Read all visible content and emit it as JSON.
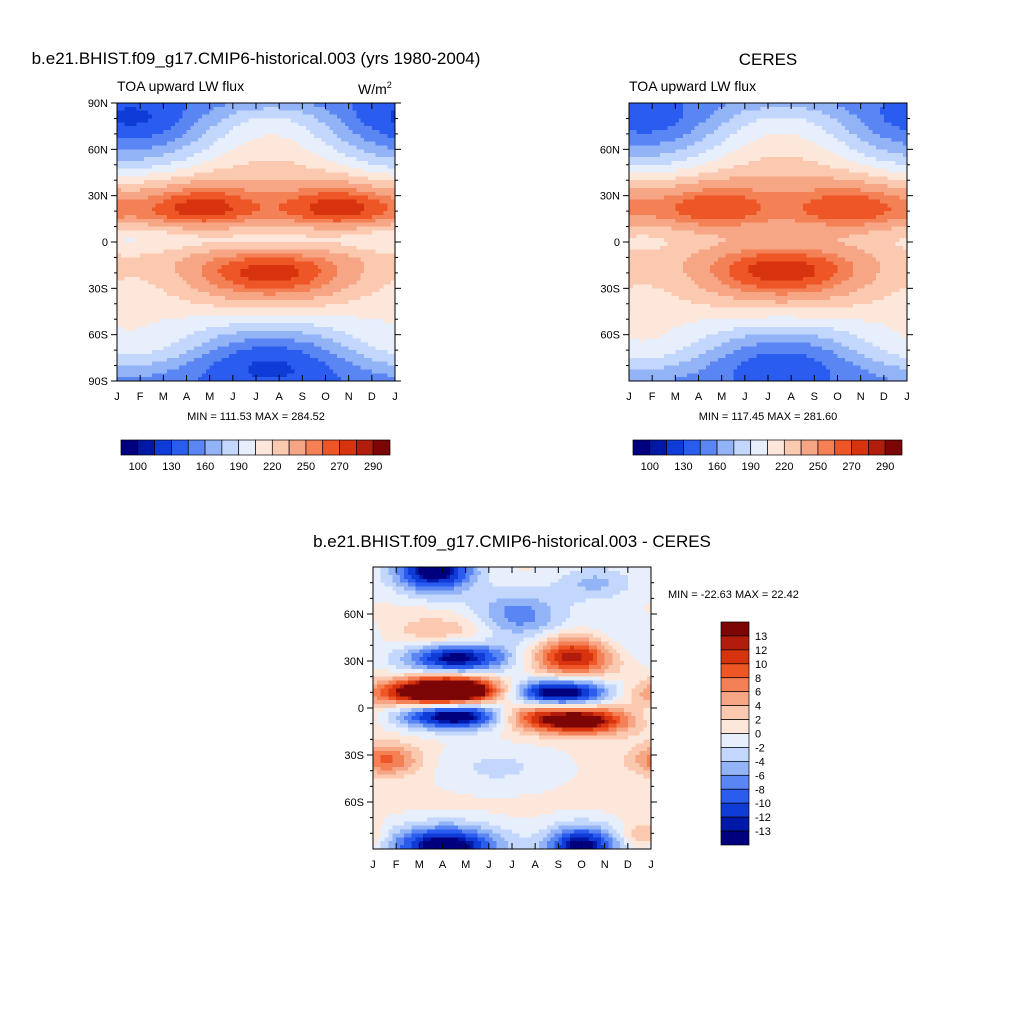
{
  "colors": {
    "abs_palette": [
      "#00007f",
      "#0018a8",
      "#0f3bd6",
      "#2a5cf0",
      "#5a86f4",
      "#93b3f7",
      "#c3d6fb",
      "#e7eefc",
      "#fde7da",
      "#fbc8b0",
      "#f7a685",
      "#f48055",
      "#ef5626",
      "#d7330e",
      "#b21c0c",
      "#7c0505"
    ],
    "diff_palette": [
      "#00007f",
      "#0018a8",
      "#0f3bd6",
      "#2a5cf0",
      "#5a86f4",
      "#93b3f7",
      "#c3d6fb",
      "#e7eefc",
      "#fde7da",
      "#fbc8b0",
      "#f7a685",
      "#f48055",
      "#ef5626",
      "#d7330e",
      "#b21c0c",
      "#7c0505"
    ]
  },
  "chart_data": [
    {
      "type": "heatmap",
      "title": "b.e21.BHIST.f09_g17.CMIP6-historical.003 (yrs 1980-2004)",
      "left_label": "TOA upward LW flux",
      "units_base": "W/m",
      "units_exp": "2",
      "x": [
        "J",
        "F",
        "M",
        "A",
        "M",
        "J",
        "J",
        "A",
        "S",
        "O",
        "N",
        "D",
        "J"
      ],
      "y_ticks": [
        "90N",
        "60N",
        "30N",
        "0",
        "30S",
        "60S",
        "90S"
      ],
      "stats": "MIN = 111.53 MAX = 284.52",
      "colorbar_labels": [
        "100",
        "130",
        "160",
        "190",
        "220",
        "250",
        "270",
        "290"
      ],
      "min": 111.53,
      "max": 284.52
    },
    {
      "type": "heatmap",
      "title": "CERES",
      "left_label": "TOA upward LW flux",
      "x": [
        "J",
        "F",
        "M",
        "A",
        "M",
        "J",
        "J",
        "A",
        "S",
        "O",
        "N",
        "D",
        "J"
      ],
      "y_ticks": [
        "60N",
        "30N",
        "0",
        "30S",
        "60S"
      ],
      "stats": "MIN = 117.45 MAX = 281.60",
      "colorbar_labels": [
        "100",
        "130",
        "160",
        "190",
        "220",
        "250",
        "270",
        "290"
      ],
      "min": 117.45,
      "max": 281.6
    },
    {
      "type": "heatmap",
      "title": "b.e21.BHIST.f09_g17.CMIP6-historical.003 - CERES",
      "x": [
        "J",
        "F",
        "M",
        "A",
        "M",
        "J",
        "J",
        "A",
        "S",
        "O",
        "N",
        "D",
        "J"
      ],
      "y_ticks": [
        "60N",
        "30N",
        "0",
        "30S",
        "60S"
      ],
      "stats": "MIN = -22.63 MAX =  22.42",
      "colorbar_labels": [
        "13",
        "12",
        "10",
        "8",
        "6",
        "4",
        "2",
        "0",
        "-2",
        "-4",
        "-6",
        "-8",
        "-10",
        "-12",
        "-13"
      ],
      "min": -22.63,
      "max": 22.42
    }
  ]
}
